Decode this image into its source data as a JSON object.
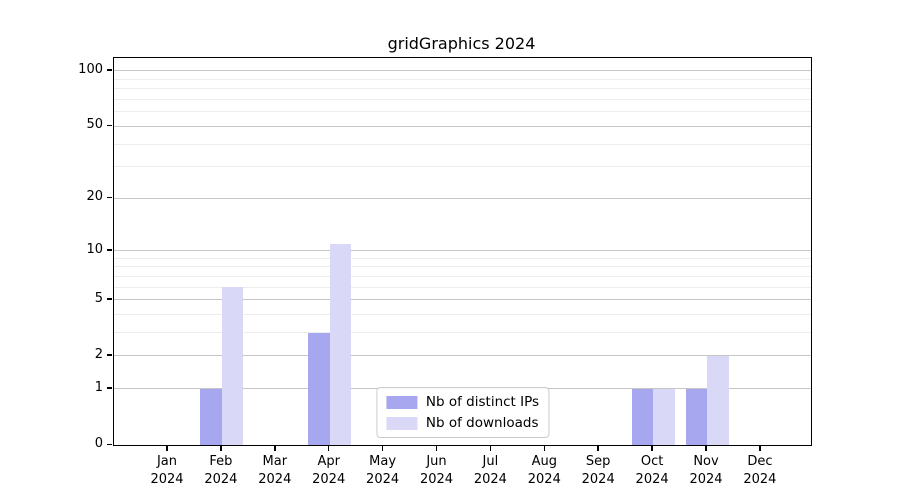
{
  "title": "gridGraphics 2024",
  "colors": {
    "ips_bar": "#a7a7f0",
    "downloads_bar": "#d9d9f7",
    "grid_major": "#c6c6c6",
    "grid_minor": "#ededed",
    "axis": "#000000",
    "legend_border": "#cccccc",
    "background": "#ffffff"
  },
  "legend": {
    "items": [
      {
        "label": "Nb of distinct IPs",
        "color_key": "ips_bar"
      },
      {
        "label": "Nb of downloads",
        "color_key": "downloads_bar"
      }
    ]
  },
  "chart_data": {
    "type": "bar",
    "title": "gridGraphics 2024",
    "xlabel": "",
    "ylabel": "",
    "y_scale": "log1p",
    "categories": [
      "Jan",
      "Feb",
      "Mar",
      "Apr",
      "May",
      "Jun",
      "Jul",
      "Aug",
      "Sep",
      "Oct",
      "Nov",
      "Dec"
    ],
    "x_tick_year": "2024",
    "series": [
      {
        "name": "Nb of distinct IPs",
        "values": [
          0,
          1,
          0,
          3,
          0,
          0,
          0,
          0,
          0,
          1,
          1,
          0
        ]
      },
      {
        "name": "Nb of downloads",
        "values": [
          0,
          6,
          0,
          11,
          0,
          0,
          0,
          0,
          0,
          1,
          2,
          0
        ]
      }
    ],
    "y_ticks_major": [
      0,
      1,
      2,
      5,
      10,
      20,
      50,
      100
    ],
    "y_gridlines_minor": [
      3,
      4,
      6,
      7,
      8,
      9,
      30,
      40,
      60,
      70,
      80,
      90
    ],
    "ylim": [
      0,
      118
    ],
    "grid": true,
    "legend_position": "lower center inside"
  }
}
